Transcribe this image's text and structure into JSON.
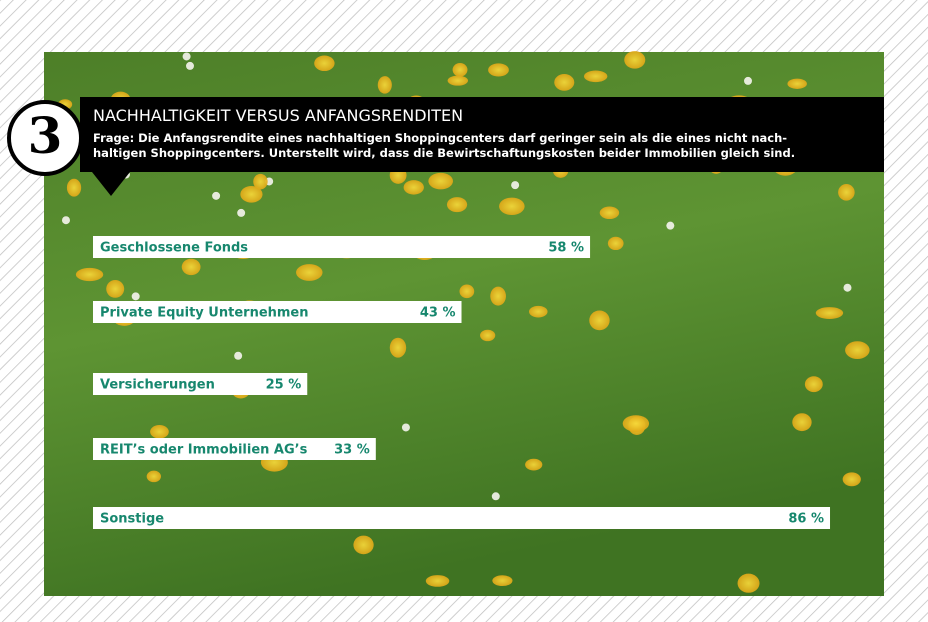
{
  "chart_data": {
    "type": "bar",
    "number": "3",
    "title": "NACHHALTIGKEIT VERSUS ANFANGSRENDITEN",
    "subtitle": [
      "Frage: Die Anfangsrendite eines nachhaltigen Shoppingcenters darf geringer sein als die eines nicht nach-",
      "haltigen Shoppingcenters. Unterstellt wird, dass die Bewirtschaftungskosten beider Immobilien gleich sind."
    ],
    "categories": [
      "Geschlossene Fonds",
      "Private Equity Unternehmen",
      "Versicherungen",
      "REIT’s oder Immobilien AG’s",
      "Sonstige"
    ],
    "values": [
      58,
      43,
      25,
      33,
      86
    ],
    "value_labels": [
      "58 %",
      "43 %",
      "25 %",
      "33 %",
      "86 %"
    ],
    "color": "#ffffff"
  }
}
